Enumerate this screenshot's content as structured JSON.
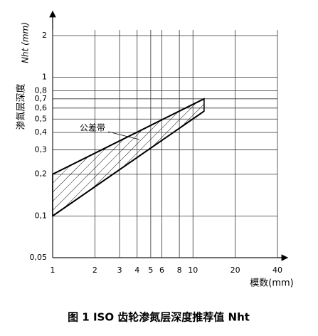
{
  "chart_data": {
    "type": "band",
    "title": "图 1 ISO 齿轮渗氮层深度推荐值 Nht",
    "x_label": "模数(mm)",
    "y_label": "渗氮层深度",
    "y_unit_label": "Nht (mm)",
    "annotation": "公差带",
    "x": [
      1,
      12
    ],
    "upper": [
      0.2,
      0.7
    ],
    "lower": [
      0.1,
      0.57
    ],
    "color": "#000000",
    "log_x": true,
    "log_y": true,
    "grid": true,
    "xlim": [
      1,
      40
    ],
    "ylim": [
      0.05,
      2
    ],
    "xticks": [
      1,
      2,
      3,
      4,
      5,
      6,
      8,
      10,
      20,
      40
    ],
    "yticks": [
      {
        "value": 0.05,
        "label": "0,05"
      },
      {
        "value": 0.1,
        "label": "0,1"
      },
      {
        "value": 0.2,
        "label": "0,2"
      },
      {
        "value": 0.3,
        "label": "0,3"
      },
      {
        "value": 0.4,
        "label": "0,4"
      },
      {
        "value": 0.5,
        "label": "0,5"
      },
      {
        "value": 0.6,
        "label": "0,6"
      },
      {
        "value": 0.7,
        "label": "0,7"
      },
      {
        "value": 0.8,
        "label": "0,8"
      },
      1,
      2
    ]
  }
}
